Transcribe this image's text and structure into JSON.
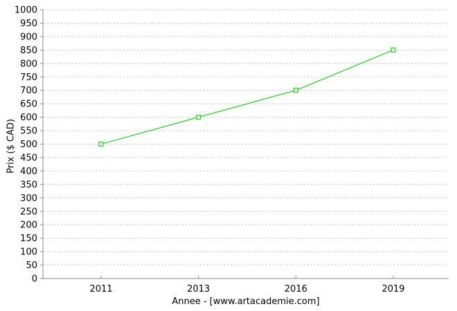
{
  "chart_data": {
    "type": "line",
    "categories": [
      "2011",
      "2013",
      "2016",
      "2019"
    ],
    "values": [
      500,
      600,
      700,
      850
    ],
    "title": "",
    "xlabel": "Annee - [www.artacademie.com]",
    "ylabel": "Prix ($ CAD)",
    "ylim": [
      0,
      1000
    ],
    "ytick_step": 50,
    "grid": "horizontal-dashed",
    "legend_position": "none",
    "marker": "open-square",
    "colors": {
      "line": "#3ecf3e",
      "marker_fill": "#d9f7d9",
      "grid": "#cfcfcf",
      "axis": "#8a8a8a",
      "text": "#000000",
      "background": "#ffffff"
    }
  }
}
